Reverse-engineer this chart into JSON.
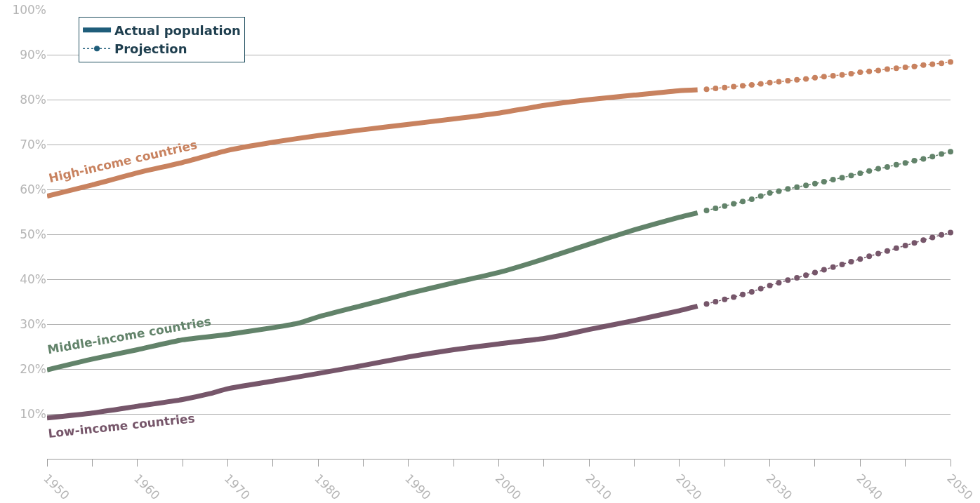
{
  "chart_data": {
    "type": "line",
    "xlim": [
      1950,
      2050
    ],
    "xticks": [
      1950,
      {
        "value": 1955,
        "label": null
      },
      1960,
      {
        "value": 1965,
        "label": null
      },
      1970,
      {
        "value": 1975,
        "label": null
      },
      1980,
      {
        "value": 1985,
        "label": null
      },
      1990,
      {
        "value": 1995,
        "label": null
      },
      2000,
      {
        "value": 2005,
        "label": null
      },
      2010,
      {
        "value": 2015,
        "label": null
      },
      2020,
      {
        "value": 2025,
        "label": null
      },
      2030,
      {
        "value": 2035,
        "label": null
      },
      2040,
      {
        "value": 2045,
        "label": null
      },
      2050
    ],
    "ylim": [
      0,
      100
    ],
    "yticks": [
      {
        "value": 10,
        "label": "10%"
      },
      {
        "value": 20,
        "label": "20%"
      },
      {
        "value": 30,
        "label": "30%"
      },
      {
        "value": 40,
        "label": "40%"
      },
      {
        "value": 50,
        "label": "50%"
      },
      {
        "value": 60,
        "label": "60%"
      },
      {
        "value": 70,
        "label": "70%"
      },
      {
        "value": 80,
        "label": "80%"
      },
      {
        "value": 90,
        "label": "90%"
      },
      {
        "value": 100,
        "label": "100%"
      }
    ],
    "grid": "y",
    "legend": "top left",
    "series": [
      {
        "name": "Actual population",
        "color": "#1f5d7a",
        "line_style": "solid",
        "marker": "none"
      },
      {
        "name": "Projection",
        "color": "#1f5d7a",
        "line_style": "dotted",
        "marker": "circle"
      },
      {
        "color": "#c8825f",
        "line_style": "solid",
        "marker": "none",
        "x": [
          1950,
          1955,
          1960,
          1965,
          1970,
          1975,
          1980,
          1985,
          1990,
          1995,
          2000,
          2005,
          2010,
          2015,
          2020,
          2022
        ],
        "values": [
          58.5,
          61,
          63.7,
          66,
          68.7,
          70.5,
          72,
          73.3,
          74.5,
          75.7,
          77,
          78.7,
          80,
          81,
          82,
          82.2
        ]
      },
      {
        "color": "#62836a",
        "line_style": "solid",
        "marker": "none",
        "x": [
          1950,
          1955,
          1960,
          1965,
          1970,
          1975,
          1978,
          1980,
          1985,
          1990,
          1995,
          2000,
          2005,
          2010,
          2015,
          2020,
          2022
        ],
        "values": [
          19.8,
          22.2,
          24.3,
          26.5,
          27.7,
          29.2,
          30.3,
          31.6,
          34.2,
          36.8,
          39.2,
          41.5,
          44.5,
          47.8,
          51,
          53.8,
          54.8
        ]
      },
      {
        "color": "#76566a",
        "line_style": "solid",
        "marker": "none",
        "x": [
          1950,
          1955,
          1960,
          1965,
          1968,
          1970,
          1975,
          1980,
          1985,
          1990,
          1995,
          2000,
          2005,
          2007,
          2010,
          2015,
          2020,
          2022
        ],
        "values": [
          9.1,
          10.2,
          11.7,
          13.2,
          14.5,
          15.6,
          17.3,
          19,
          20.8,
          22.7,
          24.3,
          25.6,
          26.8,
          27.5,
          28.8,
          30.8,
          33,
          34
        ]
      },
      {
        "color": "#c8825f",
        "line_style": "dotted",
        "marker": "circle",
        "x": [
          2023,
          2024,
          2025,
          2026,
          2027,
          2028,
          2029,
          2030,
          2031,
          2032,
          2033,
          2034,
          2035,
          2036,
          2037,
          2038,
          2039,
          2040,
          2041,
          2042,
          2043,
          2044,
          2045,
          2046,
          2047,
          2048,
          2049,
          2050
        ],
        "values": [
          82.3,
          82.5,
          82.7,
          82.9,
          83.1,
          83.3,
          83.5,
          83.8,
          84.0,
          84.2,
          84.4,
          84.6,
          84.9,
          85.1,
          85.3,
          85.5,
          85.8,
          86.1,
          86.3,
          86.5,
          86.8,
          87.0,
          87.2,
          87.4,
          87.7,
          87.9,
          88.1,
          88.4
        ]
      },
      {
        "color": "#62836a",
        "line_style": "dotted",
        "marker": "circle",
        "x": [
          2023,
          2024,
          2025,
          2026,
          2027,
          2028,
          2029,
          2030,
          2031,
          2032,
          2033,
          2034,
          2035,
          2036,
          2037,
          2038,
          2039,
          2040,
          2041,
          2042,
          2043,
          2044,
          2045,
          2046,
          2047,
          2048,
          2049,
          2050
        ],
        "values": [
          55.3,
          55.8,
          56.3,
          56.8,
          57.3,
          57.8,
          58.5,
          59.2,
          59.6,
          60.1,
          60.5,
          60.9,
          61.3,
          61.7,
          62.2,
          62.6,
          63.1,
          63.6,
          64.1,
          64.6,
          65.0,
          65.5,
          65.9,
          66.4,
          66.8,
          67.3,
          67.9,
          68.4
        ]
      },
      {
        "color": "#76566a",
        "line_style": "dotted",
        "marker": "circle",
        "x": [
          2023,
          2024,
          2025,
          2026,
          2027,
          2028,
          2029,
          2030,
          2031,
          2032,
          2033,
          2034,
          2035,
          2036,
          2037,
          2038,
          2039,
          2040,
          2041,
          2042,
          2043,
          2044,
          2045,
          2046,
          2047,
          2048,
          2049,
          2050
        ],
        "values": [
          34.5,
          35.0,
          35.5,
          36.0,
          36.6,
          37.2,
          37.9,
          38.6,
          39.2,
          39.8,
          40.3,
          40.9,
          41.5,
          42.1,
          42.7,
          43.3,
          43.9,
          44.5,
          45.1,
          45.7,
          46.3,
          46.9,
          47.5,
          48.1,
          48.7,
          49.3,
          49.9,
          50.4
        ]
      }
    ],
    "annotations": [
      "High-income countries",
      "Middle-income countries",
      "Low-income countries"
    ]
  }
}
